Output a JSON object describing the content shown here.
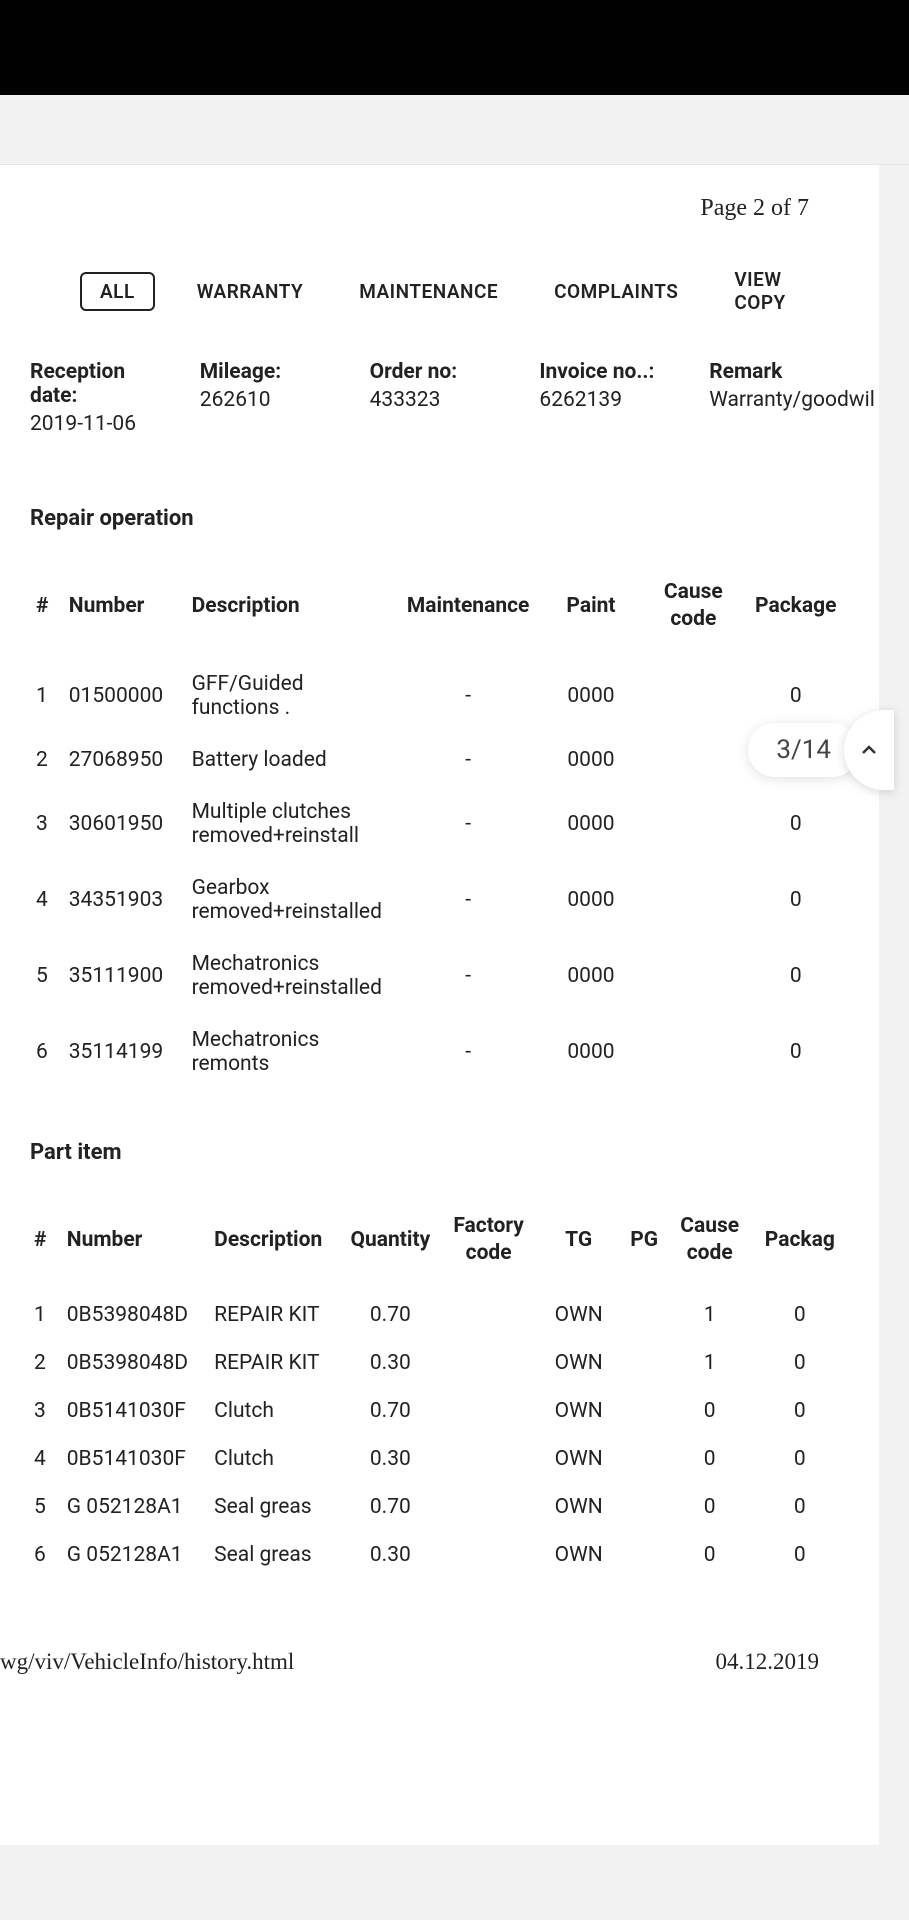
{
  "page_indicator": "Page 2 of 7",
  "tabs": {
    "all": "ALL",
    "warranty": "WARRANTY",
    "maintenance": "MAINTENANCE",
    "complaints": "COMPLAINTS",
    "view_copy": "VIEW COPY"
  },
  "header": {
    "reception_label": "Reception date:",
    "reception_value": "2019-11-06",
    "mileage_label": "Mileage:",
    "mileage_value": "262610",
    "order_label": "Order no:",
    "order_value": "433323",
    "invoice_label": "Invoice no..:",
    "invoice_value": "6262139",
    "remark_label": "Remark",
    "remark_value": "Warranty/goodwil"
  },
  "repair_section_title": "Repair operation",
  "page_badge": "3/14",
  "repair_headers": {
    "idx": "#",
    "number": "Number",
    "description": "Description",
    "maintenance": "Maintenance",
    "paint": "Paint",
    "cause": "Cause code",
    "package": "Package"
  },
  "repair_rows": [
    {
      "idx": "1",
      "number": "01500000",
      "desc": "GFF/Guided functions .",
      "maint": "-",
      "paint": "0000",
      "cause": "",
      "pkg": "0"
    },
    {
      "idx": "2",
      "number": "27068950",
      "desc": "Battery loaded",
      "maint": "-",
      "paint": "0000",
      "cause": "",
      "pkg": "0"
    },
    {
      "idx": "3",
      "number": "30601950",
      "desc": "Multiple clutches removed+reinstall",
      "maint": "-",
      "paint": "0000",
      "cause": "",
      "pkg": "0"
    },
    {
      "idx": "4",
      "number": "34351903",
      "desc": "Gearbox removed+reinstalled",
      "maint": "-",
      "paint": "0000",
      "cause": "",
      "pkg": "0"
    },
    {
      "idx": "5",
      "number": "35111900",
      "desc": "Mechatronics removed+reinstalled",
      "maint": "-",
      "paint": "0000",
      "cause": "",
      "pkg": "0"
    },
    {
      "idx": "6",
      "number": "35114199",
      "desc": "Mechatronics remonts",
      "maint": "-",
      "paint": "0000",
      "cause": "",
      "pkg": "0"
    }
  ],
  "part_section_title": "Part item",
  "part_headers": {
    "idx": "#",
    "number": "Number",
    "description": "Description",
    "quantity": "Quantity",
    "factory": "Factory code",
    "tg": "TG",
    "pg": "PG",
    "cause": "Cause code",
    "package": "Packag"
  },
  "part_rows": [
    {
      "idx": "1",
      "number": "0B5398048D",
      "desc": "REPAIR KIT",
      "qty": "0.70",
      "fac": "",
      "tg": "OWN",
      "pg": "",
      "cause": "1",
      "pkg": "0"
    },
    {
      "idx": "2",
      "number": "0B5398048D",
      "desc": "REPAIR KIT",
      "qty": "0.30",
      "fac": "",
      "tg": "OWN",
      "pg": "",
      "cause": "1",
      "pkg": "0"
    },
    {
      "idx": "3",
      "number": "0B5141030F",
      "desc": "Clutch",
      "qty": "0.70",
      "fac": "",
      "tg": "OWN",
      "pg": "",
      "cause": "0",
      "pkg": "0"
    },
    {
      "idx": "4",
      "number": "0B5141030F",
      "desc": "Clutch",
      "qty": "0.30",
      "fac": "",
      "tg": "OWN",
      "pg": "",
      "cause": "0",
      "pkg": "0"
    },
    {
      "idx": "5",
      "number": "G 052128A1",
      "desc": "Seal greas",
      "qty": "0.70",
      "fac": "",
      "tg": "OWN",
      "pg": "",
      "cause": "0",
      "pkg": "0"
    },
    {
      "idx": "6",
      "number": "G 052128A1",
      "desc": "Seal greas",
      "qty": "0.30",
      "fac": "",
      "tg": "OWN",
      "pg": "",
      "cause": "0",
      "pkg": "0"
    }
  ],
  "footer": {
    "path": "wg/viv/VehicleInfo/history.html",
    "date": "04.12.2019"
  }
}
